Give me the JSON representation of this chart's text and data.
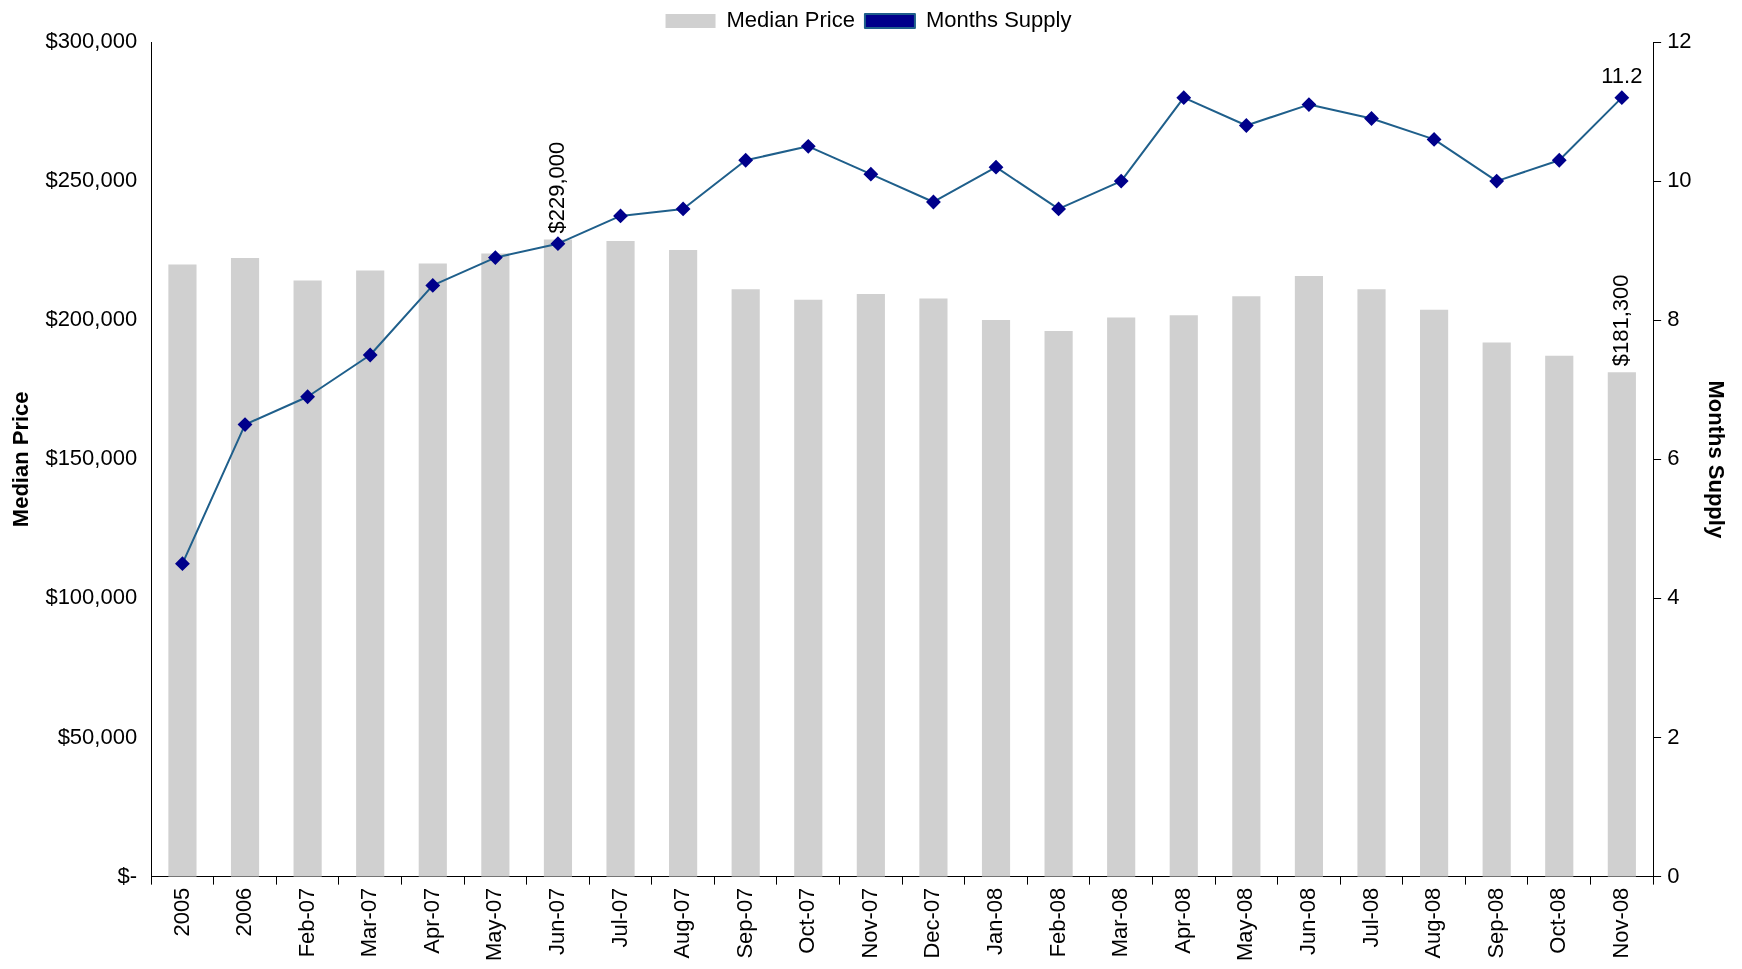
{
  "chart_data": {
    "type": "bar",
    "categories": [
      "2005",
      "2006",
      "Feb-07",
      "Mar-07",
      "Apr-07",
      "May-07",
      "Jun-07",
      "Jul-07",
      "Aug-07",
      "Sep-07",
      "Oct-07",
      "Nov-07",
      "Dec-07",
      "Jan-08",
      "Feb-08",
      "Mar-08",
      "Apr-08",
      "May-08",
      "Jun-08",
      "Jul-08",
      "Aug-08",
      "Sep-08",
      "Oct-08",
      "Nov-08"
    ],
    "series": [
      {
        "name": "Median Price",
        "color": "#d0d0d0",
        "values": [
          220000,
          222400,
          214300,
          217900,
          220400,
          224000,
          229000,
          228500,
          225200,
          211100,
          207400,
          209400,
          207800,
          200100,
          196100,
          201000,
          201800,
          208600,
          215900,
          211100,
          203800,
          192000,
          187200,
          181300
        ],
        "value_labels": [
          null,
          null,
          null,
          null,
          null,
          null,
          "$229,000",
          null,
          null,
          null,
          null,
          null,
          null,
          null,
          null,
          null,
          null,
          null,
          null,
          null,
          null,
          null,
          null,
          "$181,300"
        ]
      },
      {
        "name": "Months Supply",
        "type": "line",
        "axis": "y2",
        "color": "#1f5f8b",
        "values": [
          4.5,
          6.5,
          6.9,
          7.5,
          8.5,
          8.9,
          9.1,
          9.5,
          9.6,
          10.3,
          10.5,
          10.1,
          9.7,
          10.2,
          9.6,
          10.0,
          11.2,
          10.8,
          11.1,
          10.9,
          10.6,
          10.0,
          10.3,
          11.2
        ],
        "value_labels": [
          null,
          null,
          null,
          null,
          null,
          null,
          null,
          null,
          null,
          null,
          null,
          null,
          null,
          null,
          null,
          null,
          null,
          null,
          null,
          null,
          null,
          null,
          null,
          "11.2"
        ]
      }
    ],
    "ylabel": "Median Price",
    "y2label": "Months Supply",
    "ylim": [
      0,
      300000
    ],
    "yticks": [
      {
        "value": 0,
        "label": "$-"
      },
      {
        "value": 50000,
        "label": "$50,000"
      },
      {
        "value": 100000,
        "label": "$100,000"
      },
      {
        "value": 150000,
        "label": "$150,000"
      },
      {
        "value": 200000,
        "label": "$200,000"
      },
      {
        "value": 250000,
        "label": "$250,000"
      },
      {
        "value": 300000,
        "label": "$300,000"
      }
    ],
    "y2lim": [
      0,
      12
    ],
    "y2ticks": [
      0,
      2,
      4,
      6,
      8,
      10,
      12
    ],
    "legend": "top",
    "grid": false,
    "marker": "diamond"
  }
}
